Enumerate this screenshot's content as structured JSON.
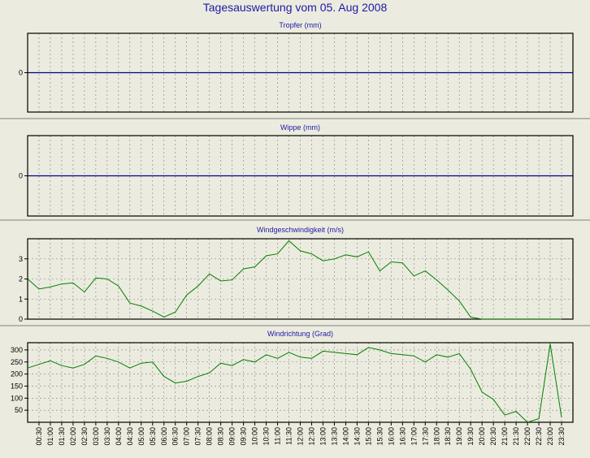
{
  "page_title": "Tagesauswertung vom 05. Aug 2008",
  "colors": {
    "title": "#1a1aa8",
    "zero_line": "#00008b",
    "series": "#008000",
    "grid": "#808080",
    "background": "#ecebdf",
    "separator": "#808080"
  },
  "chart_data": [
    {
      "type": "line",
      "title": "Tropfer (mm)",
      "yticks": [
        0
      ],
      "ylim": [
        -1,
        1
      ],
      "grid": true,
      "series": [
        {
          "values": []
        }
      ],
      "zero_line": 0
    },
    {
      "type": "line",
      "title": "Wippe (mm)",
      "yticks": [
        0
      ],
      "ylim": [
        -1,
        1
      ],
      "grid": true,
      "series": [
        {
          "values": []
        }
      ],
      "zero_line": 0
    },
    {
      "type": "line",
      "title": "Windgeschwindigkeit (m/s)",
      "yticks": [
        0,
        1,
        2,
        3
      ],
      "ylim": [
        0,
        4
      ],
      "grid": true,
      "x_start": "00:00",
      "x_step_minutes": 30,
      "series": [
        {
          "values": [
            2.0,
            1.5,
            1.6,
            1.75,
            1.8,
            1.35,
            2.05,
            2.0,
            1.65,
            0.8,
            0.65,
            0.4,
            0.1,
            0.35,
            1.2,
            1.65,
            2.25,
            1.9,
            1.95,
            2.5,
            2.6,
            3.15,
            3.25,
            3.9,
            3.4,
            3.25,
            2.9,
            3.0,
            3.2,
            3.1,
            3.35,
            2.4,
            2.85,
            2.8,
            2.15,
            2.4,
            1.95,
            1.45,
            0.9,
            0.1,
            0.0,
            0.0,
            0.0,
            0.0,
            0.0,
            0.0,
            0.0,
            0.0
          ]
        }
      ]
    },
    {
      "type": "line",
      "title": "Windrichtung (Grad)",
      "yticks": [
        50,
        100,
        150,
        200,
        250,
        300
      ],
      "ylim": [
        0,
        330
      ],
      "grid": true,
      "x_start": "00:00",
      "x_step_minutes": 30,
      "series": [
        {
          "values": [
            225,
            240,
            255,
            235,
            225,
            240,
            275,
            265,
            250,
            225,
            245,
            250,
            190,
            163,
            170,
            190,
            205,
            245,
            235,
            260,
            250,
            280,
            265,
            290,
            270,
            265,
            295,
            290,
            285,
            280,
            310,
            300,
            285,
            280,
            275,
            250,
            280,
            270,
            285,
            220,
            125,
            95,
            30,
            45,
            0,
            15,
            325,
            20
          ]
        }
      ],
      "xticks": [
        "00:30",
        "01:00",
        "01:30",
        "02:00",
        "02:30",
        "03:00",
        "03:30",
        "04:00",
        "04:30",
        "05:00",
        "05:30",
        "06:00",
        "06:30",
        "07:00",
        "07:30",
        "08:00",
        "08:30",
        "09:00",
        "09:30",
        "10:00",
        "10:30",
        "11:00",
        "11:30",
        "12:00",
        "12:30",
        "13:00",
        "13:30",
        "14:00",
        "14:30",
        "15:00",
        "15:30",
        "16:00",
        "16:30",
        "17:00",
        "17:30",
        "18:00",
        "18:30",
        "19:00",
        "19:30",
        "20:00",
        "20:30",
        "21:00",
        "21:30",
        "22:00",
        "22:30",
        "23:00",
        "23:30"
      ]
    }
  ]
}
